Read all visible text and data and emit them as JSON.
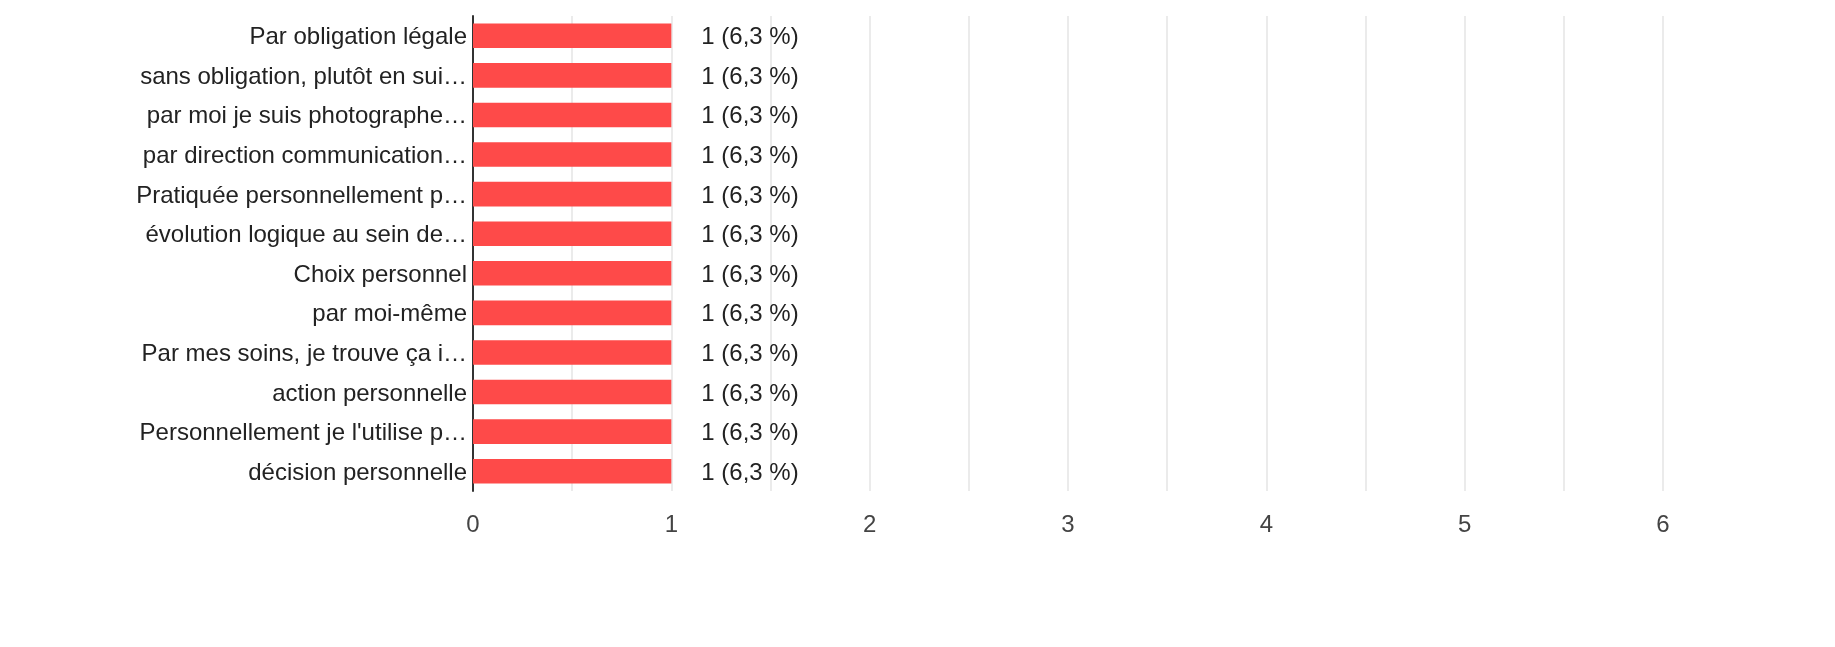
{
  "chart_data": {
    "type": "bar",
    "orientation": "horizontal",
    "categories": [
      "Par obligation légale",
      "sans obligation, plutôt en sui…",
      "par moi je suis photographe…",
      "par direction communication…",
      "Pratiquée personnellement p…",
      "évolution logique au sein de…",
      "Choix personnel",
      "par moi-même",
      "Par mes soins, je trouve ça i…",
      "action personnelle",
      "Personnellement je l'utilise p…",
      "décision personnelle"
    ],
    "values": [
      1,
      1,
      1,
      1,
      1,
      1,
      1,
      1,
      1,
      1,
      1,
      1
    ],
    "value_labels": [
      "1 (6,3 %)",
      "1 (6,3 %)",
      "1 (6,3 %)",
      "1 (6,3 %)",
      "1 (6,3 %)",
      "1 (6,3 %)",
      "1 (6,3 %)",
      "1 (6,3 %)",
      "1 (6,3 %)",
      "1 (6,3 %)",
      "1 (6,3 %)",
      "1 (6,3 %)"
    ],
    "color": "#fe4a49",
    "xlim": [
      0,
      6
    ],
    "xticks": [
      0,
      {
        "value": 0.5,
        "label": null
      },
      1,
      {
        "value": 1.5,
        "label": null
      },
      2,
      {
        "value": 2.5,
        "label": null
      },
      3,
      {
        "value": 3.5,
        "label": null
      },
      4,
      {
        "value": 4.5,
        "label": null
      },
      5,
      {
        "value": 5.5,
        "label": null
      },
      6
    ],
    "grid": "x"
  }
}
